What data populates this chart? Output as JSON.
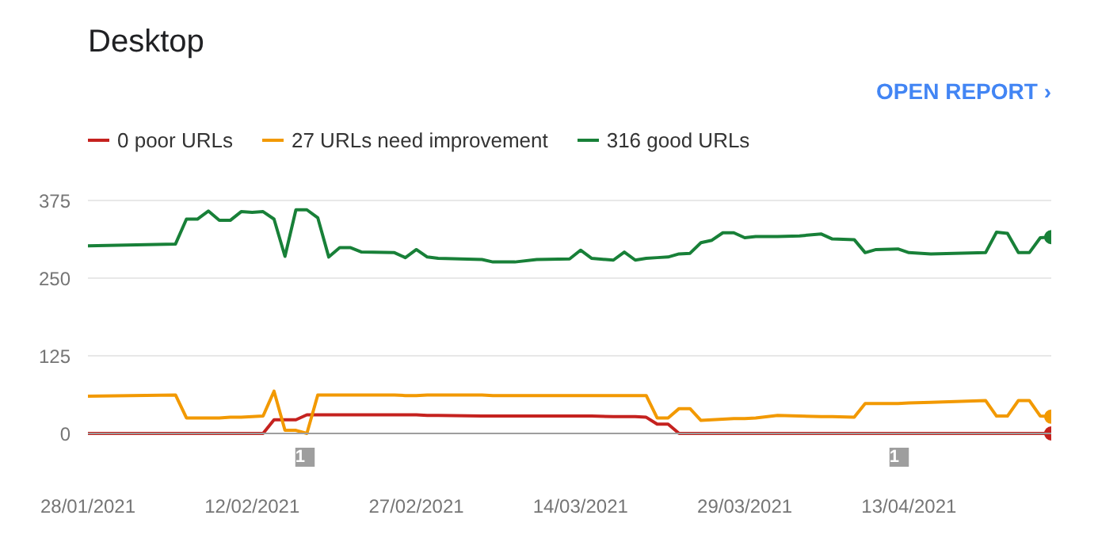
{
  "chart_data": {
    "type": "line",
    "title": "Desktop",
    "annotations": [
      "OPEN REPORT ›",
      "1",
      "1"
    ],
    "x": [
      "2021-01-28",
      "2021-02-05",
      "2021-02-06",
      "2021-02-07",
      "2021-02-08",
      "2021-02-09",
      "2021-02-10",
      "2021-02-11",
      "2021-02-12",
      "2021-02-13",
      "2021-02-14",
      "2021-02-15",
      "2021-02-16",
      "2021-02-17",
      "2021-02-18",
      "2021-02-19",
      "2021-02-20",
      "2021-02-21",
      "2021-02-22",
      "2021-02-25",
      "2021-02-26",
      "2021-02-27",
      "2021-02-28",
      "2021-03-01",
      "2021-03-05",
      "2021-03-06",
      "2021-03-08",
      "2021-03-10",
      "2021-03-13",
      "2021-03-14",
      "2021-03-15",
      "2021-03-17",
      "2021-03-18",
      "2021-03-19",
      "2021-03-20",
      "2021-03-21",
      "2021-03-22",
      "2021-03-23",
      "2021-03-24",
      "2021-03-25",
      "2021-03-26",
      "2021-03-27",
      "2021-03-28",
      "2021-03-29",
      "2021-03-30",
      "2021-04-01",
      "2021-04-03",
      "2021-04-05",
      "2021-04-06",
      "2021-04-08",
      "2021-04-09",
      "2021-04-10",
      "2021-04-12",
      "2021-04-13",
      "2021-04-15",
      "2021-04-20",
      "2021-04-21",
      "2021-04-22",
      "2021-04-23",
      "2021-04-24",
      "2021-04-25",
      "2021-04-26"
    ],
    "series": [
      {
        "name": "0 poor URLs",
        "color": "#c5221f",
        "values": [
          0,
          0,
          0,
          0,
          0,
          0,
          0,
          0,
          0,
          0,
          22,
          22,
          22,
          30,
          30,
          30,
          30,
          30,
          30,
          30,
          30,
          30,
          29,
          29,
          28,
          28,
          28,
          28,
          28,
          28,
          28,
          27,
          27,
          27,
          26,
          15,
          15,
          0,
          0,
          0,
          0,
          0,
          0,
          0,
          0,
          0,
          0,
          0,
          0,
          0,
          0,
          0,
          0,
          0,
          0,
          0,
          0,
          0,
          0,
          0,
          0,
          0
        ]
      },
      {
        "name": "27 URLs need improvement",
        "color": "#f29900",
        "values": [
          60,
          62,
          25,
          25,
          25,
          25,
          26,
          26,
          27,
          28,
          68,
          5,
          5,
          0,
          62,
          62,
          62,
          62,
          62,
          62,
          61,
          61,
          62,
          62,
          62,
          61,
          61,
          61,
          61,
          61,
          61,
          61,
          61,
          61,
          61,
          25,
          25,
          40,
          40,
          21,
          22,
          23,
          24,
          24,
          25,
          29,
          28,
          27,
          27,
          26,
          48,
          48,
          48,
          49,
          50,
          53,
          28,
          28,
          53,
          53,
          28,
          27
        ]
      },
      {
        "name": "316 good URLs",
        "color": "#188038",
        "values": [
          302,
          305,
          345,
          345,
          358,
          343,
          343,
          357,
          356,
          357,
          345,
          285,
          360,
          360,
          347,
          284,
          299,
          299,
          292,
          291,
          283,
          296,
          284,
          282,
          280,
          276,
          276,
          280,
          281,
          295,
          282,
          279,
          292,
          279,
          282,
          283,
          284,
          289,
          290,
          307,
          311,
          323,
          323,
          315,
          317,
          317,
          318,
          321,
          313,
          312,
          291,
          296,
          297,
          291,
          289,
          291,
          324,
          322,
          291,
          291,
          315,
          316
        ]
      }
    ],
    "xlim": [
      "2021-01-28",
      "2021-04-26"
    ],
    "xticks": [
      {
        "value": "2021-01-28",
        "label": "28/01/2021"
      },
      {
        "value": "2021-02-12",
        "label": "12/02/2021"
      },
      {
        "value": "2021-02-27",
        "label": "27/02/2021"
      },
      {
        "value": "2021-03-14",
        "label": "14/03/2021"
      },
      {
        "value": "2021-03-29",
        "label": "29/03/2021"
      },
      {
        "value": "2021-04-13",
        "label": "13/04/2021"
      }
    ],
    "ylim": [
      0,
      375
    ],
    "yticks": [
      0,
      125,
      250,
      375
    ],
    "grid": "y",
    "legend": "top left"
  }
}
